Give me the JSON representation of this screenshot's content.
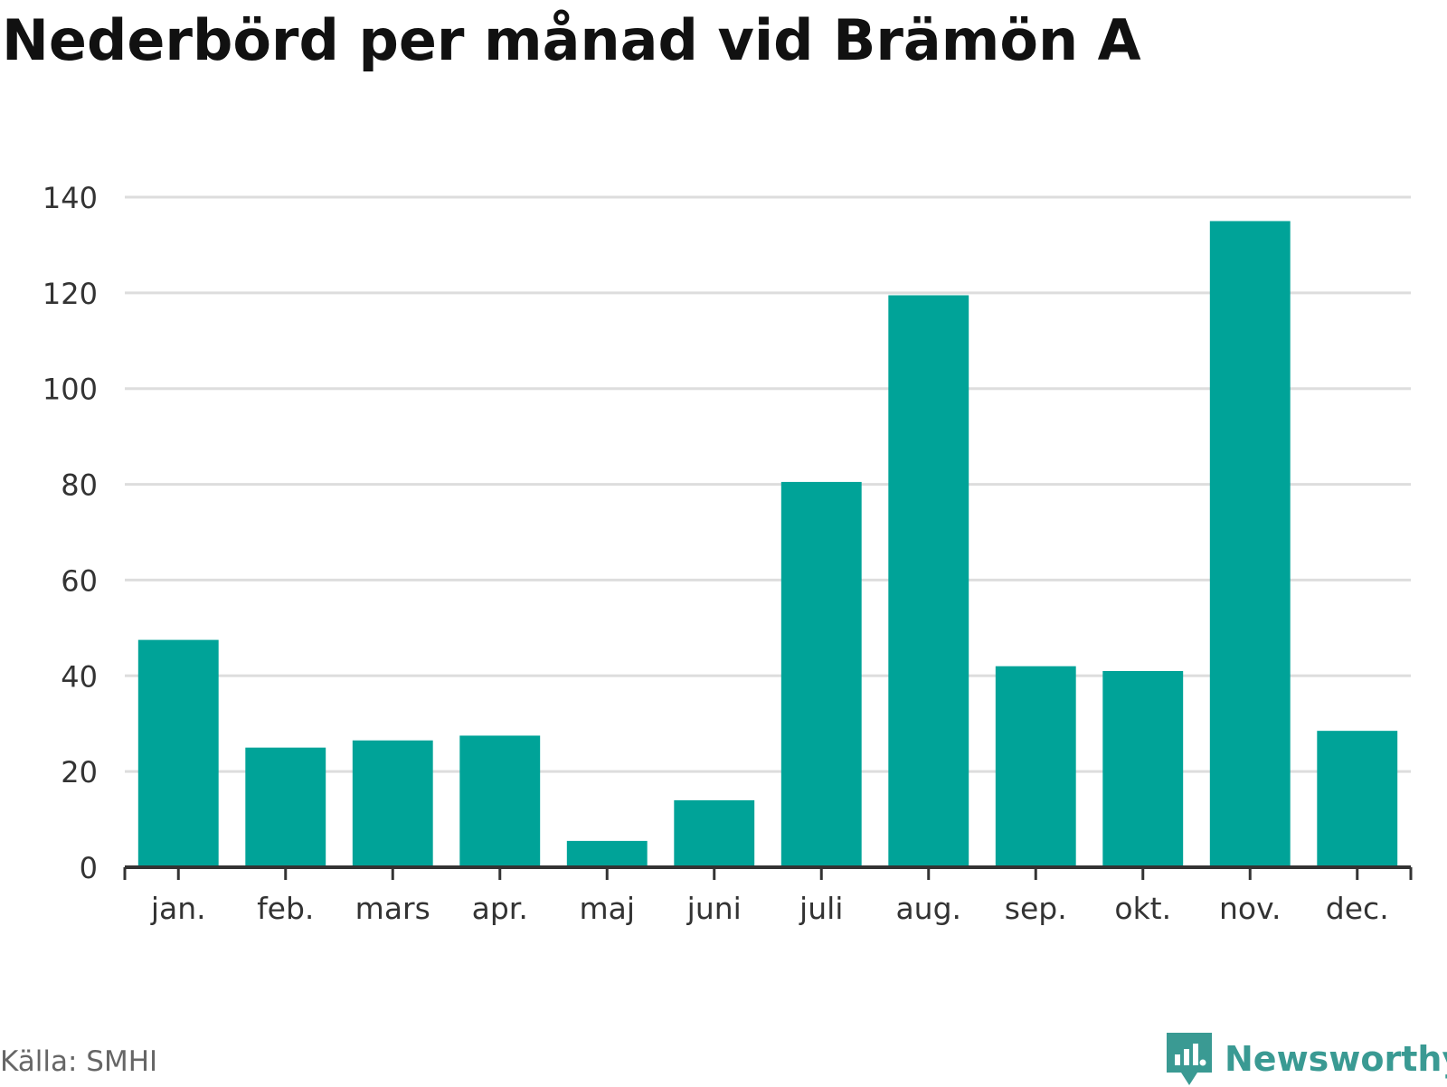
{
  "chart_data": {
    "type": "bar",
    "title": "Nederbörd per månad vid Brämön A",
    "categories": [
      "jan.",
      "feb.",
      "mars",
      "apr.",
      "maj",
      "juni",
      "juli",
      "aug.",
      "sep.",
      "okt.",
      "nov.",
      "dec."
    ],
    "values": [
      47.5,
      25,
      26.5,
      27.5,
      5.5,
      14,
      80.5,
      119.5,
      42,
      41,
      135,
      28.5
    ],
    "ylim": [
      0,
      140
    ],
    "yticks": [
      0,
      20,
      40,
      60,
      80,
      100,
      120,
      140
    ],
    "grid": true,
    "legend": "none"
  },
  "colors": {
    "bar": "#00a398",
    "grid": "#dddddd",
    "axis": "#333333",
    "brand": "#3a9a93"
  },
  "source": "Källa: SMHI",
  "brand": {
    "name": "Newsworthy",
    "icon": "newsworthy-logo-icon"
  }
}
